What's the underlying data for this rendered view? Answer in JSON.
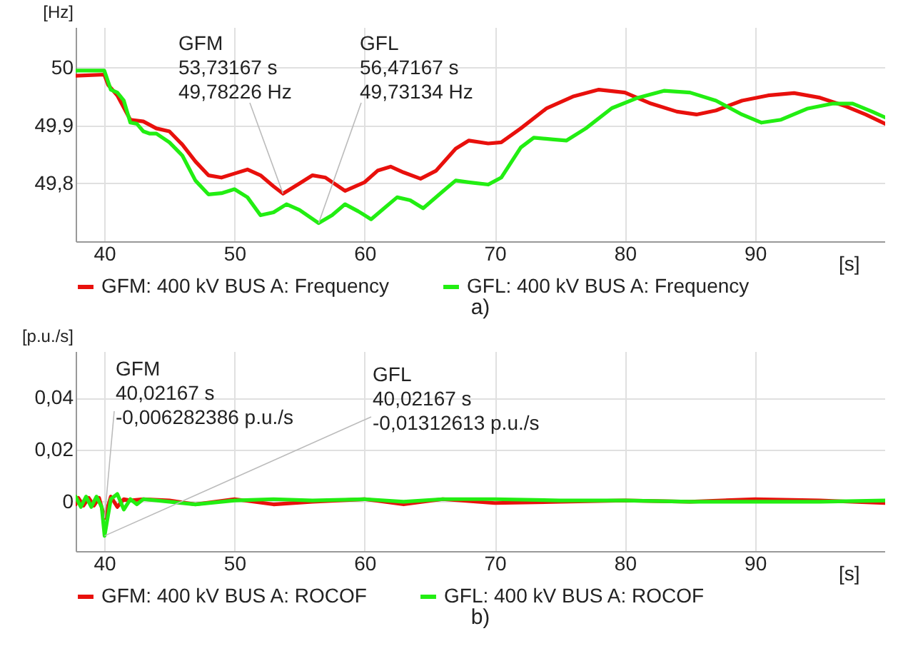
{
  "chart_data": [
    {
      "type": "line",
      "xlabel": "[s]",
      "ylabel": "[Hz]",
      "xlim": [
        37.8,
        100
      ],
      "ylim": [
        49.7,
        50.07
      ],
      "xticks": [
        40,
        50,
        60,
        70,
        80,
        90
      ],
      "yticks": [
        {
          "value": 49.8,
          "label": "49,8"
        },
        {
          "value": 49.9,
          "label": "49,9"
        },
        {
          "value": 50,
          "label": "50"
        }
      ],
      "grid": true,
      "legend": "bottom",
      "series": [
        {
          "name": "GFM: 400 kV BUS A: Frequency",
          "color": "#e8100c",
          "x": [
            37.8,
            40,
            40.3,
            41,
            42,
            43,
            44,
            45,
            46,
            47,
            48,
            49,
            50,
            51,
            52,
            53,
            53.73167,
            55,
            56,
            57,
            58.5,
            60,
            61,
            62,
            63,
            64.3,
            65.5,
            67,
            68,
            69.5,
            70.5,
            72,
            74,
            76,
            78,
            80,
            82,
            84,
            85.5,
            87,
            89,
            91,
            93,
            95,
            97,
            98.5,
            100
          ],
          "values": [
            49.986,
            49.988,
            49.97,
            49.952,
            49.91,
            49.907,
            49.895,
            49.89,
            49.867,
            49.838,
            49.814,
            49.81,
            49.817,
            49.824,
            49.814,
            49.795,
            49.78226,
            49.8,
            49.814,
            49.81,
            49.787,
            49.802,
            49.822,
            49.829,
            49.819,
            49.808,
            49.822,
            49.86,
            49.874,
            49.869,
            49.871,
            49.895,
            49.93,
            49.95,
            49.962,
            49.957,
            49.938,
            49.924,
            49.919,
            49.926,
            49.943,
            49.952,
            49.956,
            49.948,
            49.933,
            49.919,
            49.903
          ]
        },
        {
          "name": "GFL: 400 kV BUS A: Frequency",
          "color": "#22ee12",
          "x": [
            37.8,
            40,
            40.5,
            41,
            41.5,
            42,
            42.5,
            43,
            43.5,
            44,
            45,
            46,
            47,
            48,
            49,
            50,
            51,
            52,
            53,
            54,
            55,
            56.47167,
            57.5,
            58.5,
            59.5,
            60.5,
            61.5,
            62.5,
            63.5,
            64.5,
            66,
            67,
            68,
            69.5,
            70.5,
            72,
            73,
            74.5,
            75.5,
            77,
            79,
            81,
            83,
            85,
            87,
            89,
            90.5,
            92,
            94,
            96,
            97.5,
            99,
            100
          ],
          "values": [
            49.995,
            49.995,
            49.962,
            49.957,
            49.943,
            49.905,
            49.903,
            49.89,
            49.886,
            49.886,
            49.871,
            49.848,
            49.805,
            49.781,
            49.783,
            49.79,
            49.776,
            49.745,
            49.75,
            49.764,
            49.754,
            49.73134,
            49.745,
            49.764,
            49.752,
            49.738,
            49.757,
            49.776,
            49.771,
            49.757,
            49.786,
            49.805,
            49.802,
            49.798,
            49.81,
            49.862,
            49.879,
            49.876,
            49.874,
            49.895,
            49.93,
            49.948,
            49.96,
            49.957,
            49.943,
            49.919,
            49.905,
            49.91,
            49.929,
            49.938,
            49.938,
            49.924,
            49.914
          ]
        }
      ],
      "annotations": [
        {
          "text": "GFM\n53,73167 s\n49,78226 Hz",
          "x": 53.73167,
          "y": 49.78226
        },
        {
          "text": "GFL\n56,47167 s\n49,73134 Hz",
          "x": 56.47167,
          "y": 49.73134
        },
        "a)"
      ]
    },
    {
      "type": "line",
      "xlabel": "[s]",
      "ylabel": "[p.u./s]",
      "xlim": [
        37.8,
        100
      ],
      "ylim": [
        -0.019,
        0.058
      ],
      "xticks": [
        40,
        50,
        60,
        70,
        80,
        90
      ],
      "yticks": [
        0,
        {
          "value": 0.02,
          "label": "0,02"
        },
        {
          "value": 0.04,
          "label": "0,04"
        }
      ],
      "grid": true,
      "legend": "bottom",
      "series": [
        {
          "name": "GFM: 400 kV BUS A: ROCOF",
          "color": "#e8100c",
          "x": [
            37.8,
            38.0,
            38.4,
            38.8,
            39.2,
            39.6,
            40.02167,
            40.5,
            41,
            41.5,
            42,
            43,
            45,
            47,
            50,
            53,
            56,
            60,
            63,
            66,
            70,
            75,
            80,
            85,
            90,
            95,
            100
          ],
          "values": [
            -0.001,
            0.0015,
            -0.0015,
            0.0015,
            -0.0015,
            0.0015,
            -0.006282386,
            0.002,
            -0.002,
            0.001,
            0.0005,
            0.001,
            0.0005,
            -0.001,
            0.001,
            -0.001,
            0,
            0.001,
            -0.001,
            0.001,
            -0.0005,
            0,
            0.0005,
            0,
            0.001,
            0.0005,
            -0.0005
          ]
        },
        {
          "name": "GFL: 400 kV BUS A: ROCOF",
          "color": "#22ee12",
          "x": [
            37.8,
            38.2,
            38.6,
            39,
            39.4,
            39.8,
            40.02167,
            40.5,
            41,
            41.5,
            42,
            42.5,
            43,
            45,
            47,
            50,
            53,
            56,
            60,
            63,
            66,
            70,
            75,
            80,
            85,
            90,
            95,
            100
          ],
          "values": [
            0.002,
            -0.002,
            0.002,
            -0.002,
            0.002,
            -0.002,
            -0.01312613,
            0.001,
            0.003,
            -0.003,
            0.001,
            -0.001,
            0.001,
            0,
            -0.001,
            0.0005,
            0.001,
            0.0005,
            0.001,
            0,
            0.001,
            0.001,
            0.0005,
            0.0005,
            0,
            0,
            0,
            0.0005
          ]
        }
      ],
      "annotations": [
        {
          "text": "GFM\n40,02167 s\n-0,006282386 p.u./s",
          "x": 40.02167,
          "y": -0.006282386
        },
        {
          "text": "GFL\n40,02167 s\n-0,01312613 p.u./s",
          "x": 40.02167,
          "y": -0.01312613
        },
        "b)"
      ]
    }
  ]
}
